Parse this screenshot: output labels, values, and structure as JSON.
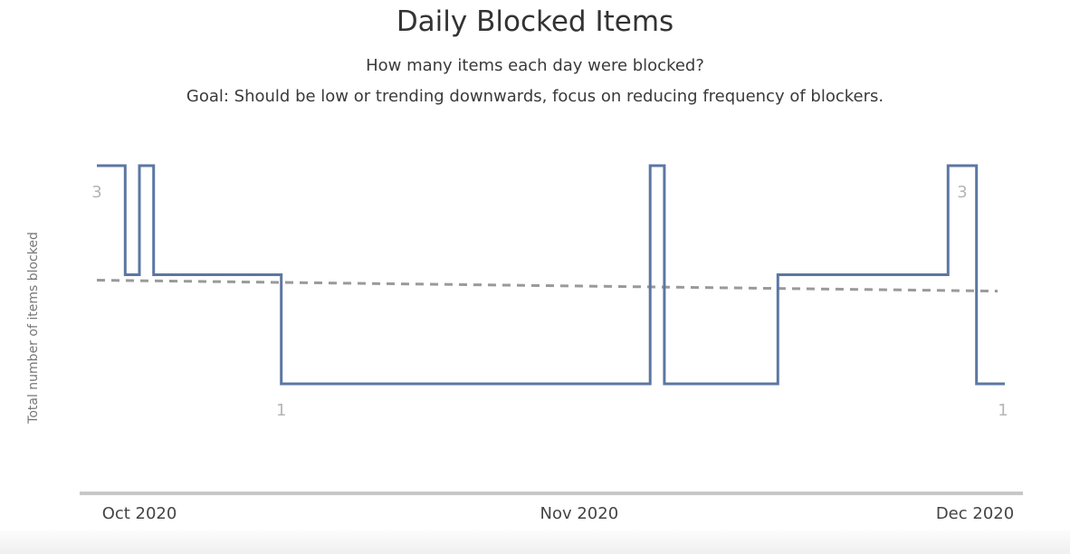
{
  "chart_data": {
    "type": "line",
    "title": "Daily Blocked Items",
    "subtitle": "How many items each day were blocked?",
    "goal": "Goal: Should be low or trending downwards, focus on reducing frequency of blockers.",
    "xlabel": "",
    "ylabel": "Total number of items blocked",
    "ylim": [
      0,
      3
    ],
    "xlim": [
      "2020-09-28",
      "2020-12-01"
    ],
    "x_ticks": [
      "Oct 2020",
      "Nov 2020",
      "Dec 2020"
    ],
    "line_shape": "step",
    "series": [
      {
        "color": "#5b77a3",
        "x": [
          "2020-09-28",
          "2020-09-30",
          "2020-10-01",
          "2020-10-02",
          "2020-10-11",
          "2020-11-06",
          "2020-11-07",
          "2020-11-15",
          "2020-11-27",
          "2020-11-29"
        ],
        "y": [
          3,
          2,
          3,
          2,
          1,
          3,
          1,
          2,
          3,
          1
        ]
      }
    ],
    "series_end": "2020-11-29",
    "trend": {
      "style": "dashed",
      "color": "#9a9a9a",
      "start": 1.95,
      "end": 1.85
    },
    "data_labels": [
      {
        "text": "3",
        "x": "2020-09-28",
        "y": 3,
        "position": "below"
      },
      {
        "text": "1",
        "x": "2020-10-11",
        "y": 1,
        "position": "below"
      },
      {
        "text": "3",
        "x": "2020-11-28",
        "y": 3,
        "position": "below"
      },
      {
        "text": "1",
        "x": "2020-11-30",
        "y": 1,
        "position": "below"
      }
    ],
    "grid": false
  }
}
